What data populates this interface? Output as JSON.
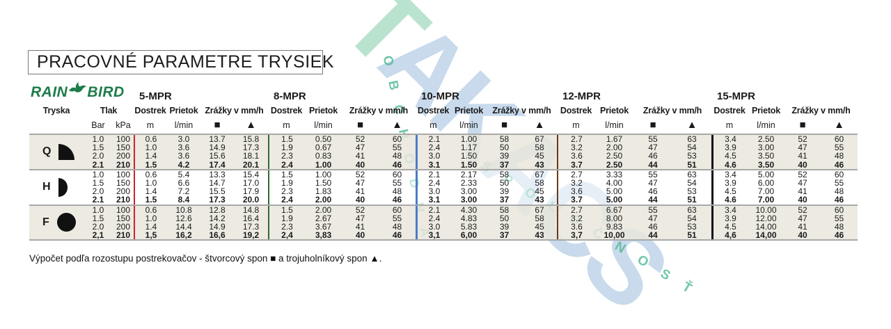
{
  "title": "PRACOVNÉ PARAMETRE TRYSIEK",
  "logo": {
    "word1": "RAIN",
    "word2": "BIRD"
  },
  "watermark": {
    "big_first": "T",
    "big_rest": "AKACS",
    "arc_left": "OBCHODNÁ",
    "arc_right": "SPOLOČNOSŤ"
  },
  "footer": "Výpočet podľa rozostupu postrekovačov - štvorcový spon ■ a trojuholníkový spon ▲.",
  "colors": {
    "sep_red": "#cf2030",
    "sep_green": "#2e6b33",
    "sep_blue": "#4a7cc7",
    "sep_brown": "#6b3a14",
    "sep_black": "#111111",
    "row_beige": "#eae7dd",
    "logo_green": "#1e7c48",
    "watermark_blue": "#c6d9ec",
    "watermark_mint": "#b7e2cd",
    "watermark_teal": "#4eb893"
  },
  "table": {
    "sections": [
      "5-MPR",
      "8-MPR",
      "10-MPR",
      "12-MPR",
      "15-MPR"
    ],
    "headers": {
      "tryska": "Tryska",
      "tlak": "Tlak",
      "bar": "Bar",
      "kpa": "kPa",
      "dostrek": "Dostrek",
      "prietok": "Prietok",
      "zrazky": "Zrážky v mm/h",
      "m": "m",
      "lmin": "l/min",
      "square": "■",
      "triangle": "▲"
    },
    "groups": [
      {
        "label": "Q",
        "icon": "quarter-circle-icon",
        "rows": [
          {
            "bold": false,
            "values": [
              "1.0",
              "100",
              "0.6",
              "3.0",
              "13.7",
              "15.8",
              "1.5",
              "0.50",
              "52",
              "60",
              "2.1",
              "1.00",
              "58",
              "67",
              "2.7",
              "1.67",
              "55",
              "63",
              "3.4",
              "2.50",
              "52",
              "60"
            ]
          },
          {
            "bold": false,
            "values": [
              "1.5",
              "150",
              "1.0",
              "3.6",
              "14.9",
              "17.3",
              "1.9",
              "0.67",
              "47",
              "55",
              "2.4",
              "1.17",
              "50",
              "58",
              "3.2",
              "2.00",
              "47",
              "54",
              "3.9",
              "3.00",
              "47",
              "55"
            ]
          },
          {
            "bold": false,
            "values": [
              "2.0",
              "200",
              "1.4",
              "3.6",
              "15.6",
              "18.1",
              "2.3",
              "0.83",
              "41",
              "48",
              "3.0",
              "1.50",
              "39",
              "45",
              "3.6",
              "2.50",
              "46",
              "53",
              "4.5",
              "3.50",
              "41",
              "48"
            ]
          },
          {
            "bold": true,
            "values": [
              "2.1",
              "210",
              "1.5",
              "4.2",
              "17.4",
              "20.1",
              "2.4",
              "1.00",
              "40",
              "46",
              "3.1",
              "1.50",
              "37",
              "43",
              "3.7",
              "2.50",
              "44",
              "51",
              "4.6",
              "3.50",
              "40",
              "46"
            ]
          }
        ]
      },
      {
        "label": "H",
        "icon": "half-circle-icon",
        "rows": [
          {
            "bold": false,
            "values": [
              "1.0",
              "100",
              "0.6",
              "5.4",
              "13.3",
              "15.4",
              "1.5",
              "1.00",
              "52",
              "60",
              "2.1",
              "2.17",
              "58",
              "67",
              "2.7",
              "3.33",
              "55",
              "63",
              "3.4",
              "5.00",
              "52",
              "60"
            ]
          },
          {
            "bold": false,
            "values": [
              "1.5",
              "150",
              "1.0",
              "6.6",
              "14.7",
              "17.0",
              "1.9",
              "1.50",
              "47",
              "55",
              "2.4",
              "2.33",
              "50",
              "58",
              "3.2",
              "4.00",
              "47",
              "54",
              "3.9",
              "6.00",
              "47",
              "55"
            ]
          },
          {
            "bold": false,
            "values": [
              "2.0",
              "200",
              "1.4",
              "7.2",
              "15.5",
              "17.9",
              "2.3",
              "1.83",
              "41",
              "48",
              "3.0",
              "3.00",
              "39",
              "45",
              "3.6",
              "5.00",
              "46",
              "53",
              "4.5",
              "7.00",
              "41",
              "48"
            ]
          },
          {
            "bold": true,
            "values": [
              "2.1",
              "210",
              "1.5",
              "8.4",
              "17.3",
              "20.0",
              "2.4",
              "2.00",
              "40",
              "46",
              "3.1",
              "3.00",
              "37",
              "43",
              "3.7",
              "5.00",
              "44",
              "51",
              "4.6",
              "7.00",
              "40",
              "46"
            ]
          }
        ]
      },
      {
        "label": "F",
        "icon": "full-circle-icon",
        "rows": [
          {
            "bold": false,
            "values": [
              "1.0",
              "100",
              "0.6",
              "10.8",
              "12.8",
              "14.8",
              "1.5",
              "2.00",
              "52",
              "60",
              "2.1",
              "4.30",
              "58",
              "67",
              "2.7",
              "6.67",
              "55",
              "63",
              "3.4",
              "10.00",
              "52",
              "60"
            ]
          },
          {
            "bold": false,
            "values": [
              "1.5",
              "150",
              "1.0",
              "12.6",
              "14.2",
              "16.4",
              "1.9",
              "2.67",
              "47",
              "55",
              "2.4",
              "4.83",
              "50",
              "58",
              "3.2",
              "8.00",
              "47",
              "54",
              "3.9",
              "12.00",
              "47",
              "55"
            ]
          },
          {
            "bold": false,
            "values": [
              "2.0",
              "200",
              "1.4",
              "14.4",
              "14.9",
              "17.3",
              "2.3",
              "3.67",
              "41",
              "48",
              "3.0",
              "5.83",
              "39",
              "45",
              "3.6",
              "9.83",
              "46",
              "53",
              "4.5",
              "14.00",
              "41",
              "48"
            ]
          },
          {
            "bold": true,
            "values": [
              "2,1",
              "210",
              "1,5",
              "16,2",
              "16,6",
              "19,2",
              "2,4",
              "3,83",
              "40",
              "46",
              "3,1",
              "6,00",
              "37",
              "43",
              "3,7",
              "10,00",
              "44",
              "51",
              "4,6",
              "14,00",
              "40",
              "46"
            ]
          }
        ]
      }
    ]
  }
}
